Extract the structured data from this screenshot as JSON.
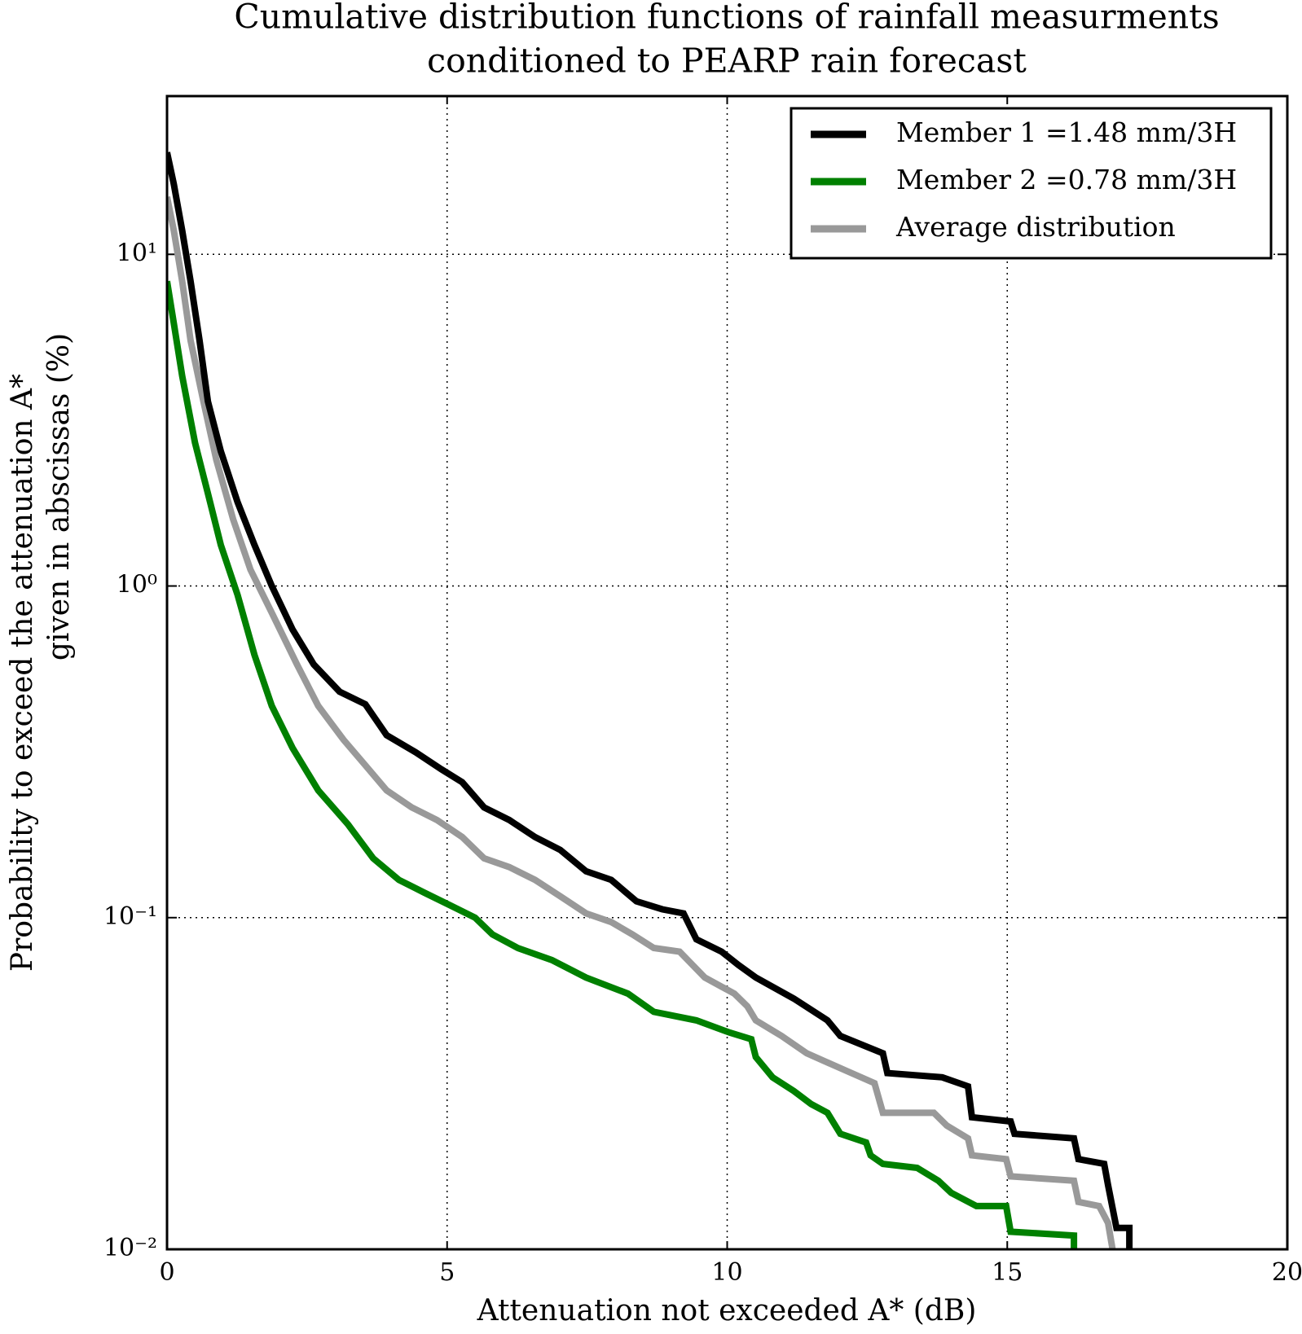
{
  "chart_data": {
    "type": "line",
    "title": [
      "Cumulative distribution functions of rainfall measurments",
      "conditioned to PEARP rain forecast"
    ],
    "x_label": "Attenuation not exceeded A* (dB)",
    "y_label": [
      "Probability to exceed the attenuation A*",
      "given in abscissas (%)"
    ],
    "xlim": [
      0,
      20
    ],
    "ylim": [
      0.01,
      30
    ],
    "xticks": [
      0,
      5,
      10,
      15,
      20
    ],
    "yticks": [
      {
        "value": 0.01,
        "label": "10⁻²"
      },
      {
        "value": 0.1,
        "label": "10⁻¹"
      },
      {
        "value": 1,
        "label": "10⁰"
      },
      {
        "value": 10,
        "label": "10¹"
      }
    ],
    "yscale": "log",
    "grid": true,
    "legend": "upper right",
    "series": [
      {
        "name": "Member 1 =1.48 mm/3H",
        "color": "#000000",
        "x": [
          0,
          0.12,
          0.27,
          0.42,
          0.58,
          0.73,
          0.96,
          1.26,
          1.56,
          1.87,
          2.24,
          2.62,
          3.08,
          3.54,
          3.92,
          4.44,
          4.9,
          5.27,
          5.66,
          6.11,
          6.57,
          7.02,
          7.48,
          7.93,
          8.38,
          8.84,
          9.22,
          9.45,
          9.9,
          10.2,
          10.51,
          11.19,
          11.79,
          12.02,
          12.78,
          12.86,
          13.84,
          14.3,
          14.37,
          15.06,
          15.13,
          16.19,
          16.27,
          16.73,
          16.8,
          16.95,
          17.18,
          17.18
        ],
        "values": [
          20.3,
          16.3,
          11.8,
          8.3,
          5.5,
          3.6,
          2.55,
          1.79,
          1.33,
          1.0,
          0.74,
          0.58,
          0.48,
          0.44,
          0.355,
          0.315,
          0.28,
          0.256,
          0.215,
          0.197,
          0.175,
          0.16,
          0.138,
          0.13,
          0.112,
          0.106,
          0.103,
          0.086,
          0.079,
          0.072,
          0.066,
          0.057,
          0.049,
          0.044,
          0.039,
          0.034,
          0.033,
          0.031,
          0.025,
          0.0243,
          0.0223,
          0.0216,
          0.0187,
          0.0181,
          0.0156,
          0.0116,
          0.0116,
          0.01
        ]
      },
      {
        "name": "Member 2 =0.78 mm/3H",
        "color": "#008000",
        "x": [
          0,
          0.12,
          0.27,
          0.5,
          0.73,
          0.96,
          1.26,
          1.56,
          1.87,
          2.24,
          2.7,
          3.23,
          3.68,
          4.14,
          4.59,
          5.05,
          5.5,
          5.81,
          6.26,
          6.87,
          7.48,
          8.23,
          8.69,
          9.45,
          10.05,
          10.43,
          10.51,
          10.81,
          11.19,
          11.5,
          11.79,
          12.02,
          12.48,
          12.56,
          12.78,
          13.39,
          13.77,
          14,
          14.45,
          14.98,
          15.06,
          16.19,
          16.19
        ],
        "values": [
          8.3,
          6.2,
          4.3,
          2.7,
          1.9,
          1.33,
          0.94,
          0.62,
          0.435,
          0.325,
          0.242,
          0.191,
          0.151,
          0.13,
          0.119,
          0.109,
          0.1,
          0.089,
          0.081,
          0.0745,
          0.066,
          0.059,
          0.052,
          0.049,
          0.045,
          0.043,
          0.038,
          0.033,
          0.03,
          0.0274,
          0.0258,
          0.0223,
          0.021,
          0.0192,
          0.0181,
          0.0176,
          0.0161,
          0.0148,
          0.0135,
          0.0135,
          0.0113,
          0.011,
          0.01
        ]
      },
      {
        "name": "Average distribution",
        "color": "#999999",
        "x": [
          0,
          0.12,
          0.27,
          0.42,
          0.65,
          0.88,
          1.18,
          1.49,
          1.87,
          2.32,
          2.7,
          3.15,
          3.54,
          3.92,
          4.37,
          4.82,
          5.27,
          5.66,
          6.11,
          6.57,
          7.02,
          7.48,
          7.93,
          8.31,
          8.69,
          9.15,
          9.6,
          10.13,
          10.36,
          10.51,
          10.97,
          11.42,
          12.1,
          12.63,
          12.78,
          13.69,
          13.92,
          14.3,
          14.37,
          14.98,
          15.06,
          16.19,
          16.27,
          16.64,
          16.8,
          16.88
        ],
        "values": [
          14.9,
          11.8,
          8.3,
          5.5,
          3.6,
          2.4,
          1.59,
          1.12,
          0.83,
          0.58,
          0.435,
          0.344,
          0.288,
          0.242,
          0.215,
          0.197,
          0.175,
          0.151,
          0.142,
          0.13,
          0.116,
          0.103,
          0.097,
          0.089,
          0.081,
          0.079,
          0.066,
          0.059,
          0.054,
          0.049,
          0.044,
          0.039,
          0.0347,
          0.0317,
          0.0258,
          0.0258,
          0.0236,
          0.0216,
          0.0192,
          0.0187,
          0.0166,
          0.0161,
          0.0139,
          0.0135,
          0.012,
          0.01
        ]
      }
    ]
  }
}
